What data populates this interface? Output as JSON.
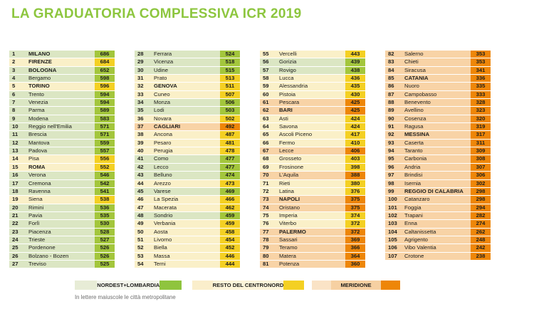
{
  "title": "LA GRADUATORIA COMPLESSIVA ICR 2019",
  "colors": {
    "title": "#8dc63f",
    "text": "#1d1d1b",
    "ne": {
      "row": "#dbe6c3",
      "score": "#a3c63c"
    },
    "cn": {
      "row": "#faf0c8",
      "score": "#f4d023"
    },
    "me": {
      "row": "#f8d3a6",
      "score": "#ee8608"
    }
  },
  "legend": {
    "items": [
      {
        "key": "ne",
        "label": "NORDEST+LOMBARDIA",
        "light": "#e7ecd6",
        "mid": "#f4f6ec",
        "dark": "#8fc43e"
      },
      {
        "key": "cn",
        "label": "RESTO DEL CENTRONORD",
        "light": "#faeecb",
        "mid": "#fcf4d9",
        "dark": "#f4d023"
      },
      {
        "key": "me",
        "label": "MERIDIONE",
        "light": "#fae3c6",
        "mid": "#f6d0a2",
        "dark": "#ee8608"
      }
    ],
    "note": "In lettere maiuscole le città metropolitane"
  },
  "chart_data": {
    "type": "table",
    "title": "LA GRADUATORIA COMPLESSIVA ICR 2019",
    "columns": [
      "rank",
      "city",
      "score",
      "region_group"
    ],
    "region_groups": {
      "ne": "NORDEST+LOMBARDIA",
      "cn": "RESTO DEL CENTRONORD",
      "me": "MERIDIONE"
    },
    "note": "Uppercase names = metropolitan cities",
    "rows": [
      [
        1,
        "MILANO",
        686,
        "ne"
      ],
      [
        2,
        "FIRENZE",
        684,
        "cn"
      ],
      [
        3,
        "BOLOGNA",
        652,
        "ne"
      ],
      [
        4,
        "Bergamo",
        598,
        "ne"
      ],
      [
        5,
        "TORINO",
        596,
        "cn"
      ],
      [
        6,
        "Trento",
        594,
        "ne"
      ],
      [
        7,
        "Venezia",
        594,
        "ne"
      ],
      [
        8,
        "Parma",
        589,
        "ne"
      ],
      [
        9,
        "Modena",
        583,
        "ne"
      ],
      [
        10,
        "Reggio nell'Emilia",
        571,
        "ne"
      ],
      [
        11,
        "Brescia",
        571,
        "ne"
      ],
      [
        12,
        "Mantova",
        559,
        "ne"
      ],
      [
        13,
        "Padova",
        557,
        "ne"
      ],
      [
        14,
        "Pisa",
        556,
        "cn"
      ],
      [
        15,
        "ROMA",
        552,
        "cn"
      ],
      [
        16,
        "Verona",
        546,
        "ne"
      ],
      [
        17,
        "Cremona",
        542,
        "ne"
      ],
      [
        18,
        "Ravenna",
        541,
        "ne"
      ],
      [
        19,
        "Siena",
        538,
        "cn"
      ],
      [
        20,
        "Rimini",
        536,
        "ne"
      ],
      [
        21,
        "Pavia",
        535,
        "ne"
      ],
      [
        22,
        "Forlì",
        530,
        "ne"
      ],
      [
        23,
        "Piacenza",
        528,
        "ne"
      ],
      [
        24,
        "Trieste",
        527,
        "ne"
      ],
      [
        25,
        "Pordenone",
        526,
        "ne"
      ],
      [
        26,
        "Bolzano - Bozen",
        526,
        "ne"
      ],
      [
        27,
        "Treviso",
        525,
        "ne"
      ],
      [
        28,
        "Ferrara",
        524,
        "ne"
      ],
      [
        29,
        "Vicenza",
        518,
        "ne"
      ],
      [
        30,
        "Udine",
        515,
        "ne"
      ],
      [
        31,
        "Prato",
        513,
        "cn"
      ],
      [
        32,
        "GENOVA",
        511,
        "cn"
      ],
      [
        33,
        "Cuneo",
        507,
        "cn"
      ],
      [
        34,
        "Monza",
        506,
        "ne"
      ],
      [
        35,
        "Lodi",
        503,
        "ne"
      ],
      [
        36,
        "Novara",
        502,
        "cn"
      ],
      [
        37,
        "CAGLIARI",
        492,
        "me"
      ],
      [
        38,
        "Ancona",
        487,
        "cn"
      ],
      [
        39,
        "Pesaro",
        481,
        "cn"
      ],
      [
        40,
        "Perugia",
        478,
        "cn"
      ],
      [
        41,
        "Como",
        477,
        "ne"
      ],
      [
        42,
        "Lecco",
        477,
        "ne"
      ],
      [
        43,
        "Belluno",
        474,
        "ne"
      ],
      [
        44,
        "Arezzo",
        473,
        "cn"
      ],
      [
        45,
        "Varese",
        469,
        "ne"
      ],
      [
        46,
        "La Spezia",
        466,
        "cn"
      ],
      [
        47,
        "Macerata",
        462,
        "cn"
      ],
      [
        48,
        "Sondrio",
        459,
        "ne"
      ],
      [
        49,
        "Verbania",
        459,
        "cn"
      ],
      [
        50,
        "Aosta",
        458,
        "cn"
      ],
      [
        51,
        "Livorno",
        454,
        "cn"
      ],
      [
        52,
        "Biella",
        452,
        "cn"
      ],
      [
        53,
        "Massa",
        446,
        "cn"
      ],
      [
        54,
        "Terni",
        444,
        "cn"
      ],
      [
        55,
        "Vercelli",
        443,
        "cn"
      ],
      [
        56,
        "Gorizia",
        439,
        "ne"
      ],
      [
        57,
        "Rovigo",
        438,
        "ne"
      ],
      [
        58,
        "Lucca",
        436,
        "cn"
      ],
      [
        59,
        "Alessandria",
        435,
        "cn"
      ],
      [
        60,
        "Pistoia",
        430,
        "cn"
      ],
      [
        61,
        "Pescara",
        425,
        "me"
      ],
      [
        62,
        "BARI",
        425,
        "me"
      ],
      [
        63,
        "Asti",
        424,
        "cn"
      ],
      [
        64,
        "Savona",
        424,
        "cn"
      ],
      [
        65,
        "Ascoli Piceno",
        417,
        "cn"
      ],
      [
        66,
        "Fermo",
        410,
        "cn"
      ],
      [
        67,
        "Lecce",
        406,
        "me"
      ],
      [
        68,
        "Grosseto",
        403,
        "cn"
      ],
      [
        69,
        "Frosinone",
        398,
        "cn"
      ],
      [
        70,
        "L'Aquila",
        388,
        "me"
      ],
      [
        71,
        "Rieti",
        380,
        "cn"
      ],
      [
        72,
        "Latina",
        376,
        "cn"
      ],
      [
        73,
        "NAPOLI",
        375,
        "me"
      ],
      [
        74,
        "Oristano",
        375,
        "me"
      ],
      [
        75,
        "Imperia",
        374,
        "cn"
      ],
      [
        76,
        "Viterbo",
        372,
        "cn"
      ],
      [
        77,
        "PALERMO",
        372,
        "me"
      ],
      [
        78,
        "Sassari",
        369,
        "me"
      ],
      [
        79,
        "Teramo",
        366,
        "me"
      ],
      [
        80,
        "Matera",
        364,
        "me"
      ],
      [
        81,
        "Potenza",
        360,
        "me"
      ],
      [
        82,
        "Salerno",
        353,
        "me"
      ],
      [
        83,
        "Chieti",
        353,
        "me"
      ],
      [
        84,
        "Siracusa",
        341,
        "me"
      ],
      [
        85,
        "CATANIA",
        336,
        "me"
      ],
      [
        86,
        "Nuoro",
        335,
        "me"
      ],
      [
        87,
        "Campobasso",
        333,
        "me"
      ],
      [
        88,
        "Benevento",
        328,
        "me"
      ],
      [
        89,
        "Avellino",
        323,
        "me"
      ],
      [
        90,
        "Cosenza",
        320,
        "me"
      ],
      [
        91,
        "Ragusa",
        319,
        "me"
      ],
      [
        92,
        "MESSINA",
        317,
        "me"
      ],
      [
        93,
        "Caserta",
        311,
        "me"
      ],
      [
        94,
        "Taranto",
        309,
        "me"
      ],
      [
        95,
        "Carbonia",
        308,
        "me"
      ],
      [
        96,
        "Andria",
        307,
        "me"
      ],
      [
        97,
        "Brindisi",
        306,
        "me"
      ],
      [
        98,
        "Isernia",
        302,
        "me"
      ],
      [
        99,
        "REGGIO DI CALABRIA",
        298,
        "me"
      ],
      [
        100,
        "Catanzaro",
        298,
        "me"
      ],
      [
        101,
        "Foggia",
        294,
        "me"
      ],
      [
        102,
        "Trapani",
        282,
        "me"
      ],
      [
        103,
        "Enna",
        274,
        "me"
      ],
      [
        104,
        "Caltanissetta",
        262,
        "me"
      ],
      [
        105,
        "Agrigento",
        248,
        "me"
      ],
      [
        106,
        "Vibo Valentia",
        242,
        "me"
      ],
      [
        107,
        "Crotone",
        238,
        "me"
      ]
    ]
  }
}
